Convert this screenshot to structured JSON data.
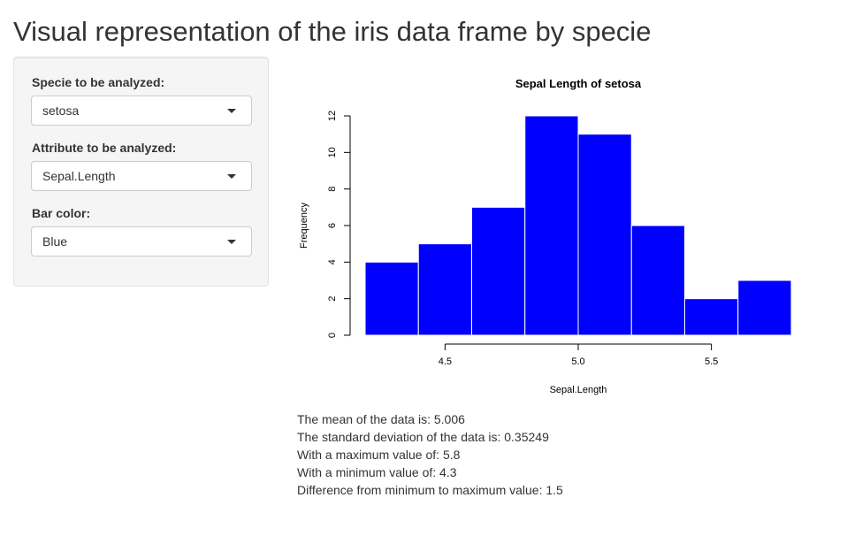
{
  "page_title": "Visual representation of the iris data frame by specie",
  "sidebar": {
    "specie_label": "Specie to be analyzed:",
    "specie_value": "setosa",
    "attribute_label": "Attribute to be analyzed:",
    "attribute_value": "Sepal.Length",
    "color_label": "Bar color:",
    "color_value": "Blue"
  },
  "colors": {
    "bar_fill": "#0000ff",
    "bar_border": "#ffffff"
  },
  "chart_data": {
    "type": "bar",
    "title": "Sepal Length of setosa",
    "xlabel": "Sepal.Length",
    "ylabel": "Frequency",
    "bins": [
      [
        4.2,
        4.4
      ],
      [
        4.4,
        4.6
      ],
      [
        4.6,
        4.8
      ],
      [
        4.8,
        5.0
      ],
      [
        5.0,
        5.2
      ],
      [
        5.2,
        5.4
      ],
      [
        5.4,
        5.6
      ],
      [
        5.6,
        5.8
      ]
    ],
    "values": [
      4,
      5,
      7,
      12,
      11,
      6,
      2,
      3
    ],
    "xlim": [
      4.2,
      5.8
    ],
    "ylim": [
      0,
      12
    ],
    "x_ticks": [
      "4.5",
      "5.0",
      "5.5"
    ],
    "y_ticks": [
      "0",
      "2",
      "4",
      "6",
      "8",
      "10",
      "12"
    ],
    "grid": false
  },
  "stats": {
    "mean": "The mean of the data is: 5.006",
    "sd": "The standard deviation of the data is: 0.35249",
    "max": "With a maximum value of: 5.8",
    "min": "With a minimum value of: 4.3",
    "diff": "Difference from minimum to maximum value: 1.5"
  }
}
